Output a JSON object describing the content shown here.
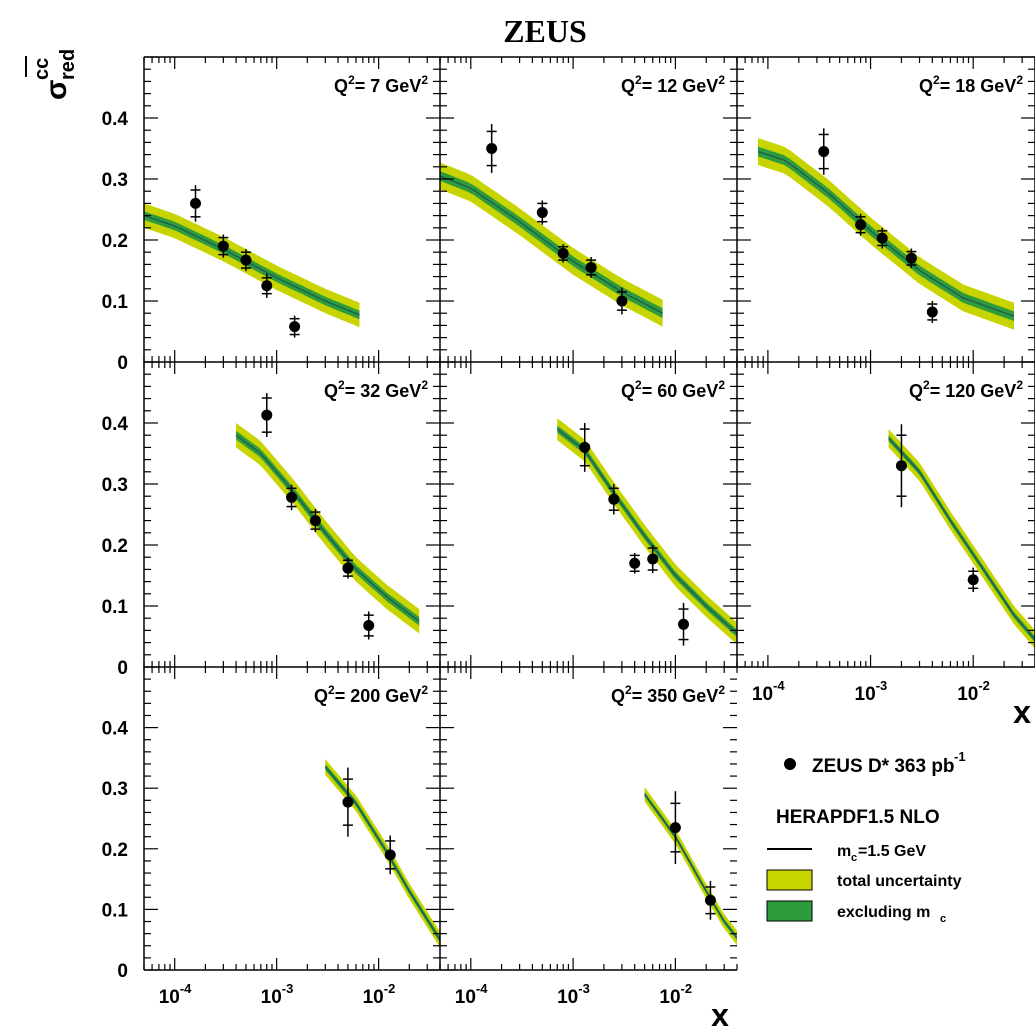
{
  "title": "ZEUS",
  "ylabel_main": "σ",
  "ylabel_sup": "cc",
  "ylabel_sub": "red",
  "xlabel": "x",
  "x_ticks": [
    {
      "base": "10",
      "exp": "-4",
      "x": 0.0001
    },
    {
      "base": "10",
      "exp": "-3",
      "x": 0.001
    },
    {
      "base": "10",
      "exp": "-2",
      "x": 0.01
    }
  ],
  "y_ticks": [
    "0",
    "0.1",
    "0.2",
    "0.3",
    "0.4"
  ],
  "legend": {
    "data": "ZEUS D* 363 pb",
    "data_sup": "-1",
    "theory_title": "HERAPDF1.5 NLO",
    "line_main": "m",
    "line_sub": "c",
    "line_rest": "=1.5 GeV",
    "total": "total uncertainty",
    "excl_main": "excluding m",
    "excl_sub": "c"
  },
  "colors": {
    "total_band": "#c8d400",
    "excl_band": "#2e9b3c",
    "central": "#1f5f4f",
    "points": "#000000"
  },
  "chart_data": {
    "type": "scatter",
    "x_scale": "log",
    "xlim": [
      5e-05,
      0.04
    ],
    "ylim": [
      0,
      0.5
    ],
    "panels": [
      {
        "label": "Q",
        "sup": "2",
        "value": "= 7",
        "unit": "GeV",
        "unit_sup": "2",
        "points": [
          {
            "x": 0.00016,
            "y": 0.26,
            "stat": 0.022,
            "tot": 0.03
          },
          {
            "x": 0.0003,
            "y": 0.19,
            "stat": 0.014,
            "tot": 0.019
          },
          {
            "x": 0.0005,
            "y": 0.167,
            "stat": 0.013,
            "tot": 0.018
          },
          {
            "x": 0.0008,
            "y": 0.125,
            "stat": 0.013,
            "tot": 0.02
          },
          {
            "x": 0.0015,
            "y": 0.058,
            "stat": 0.013,
            "tot": 0.018
          }
        ],
        "curve": [
          [
            5e-05,
            0.24
          ],
          [
            0.0001,
            0.223
          ],
          [
            0.0003,
            0.185
          ],
          [
            0.001,
            0.138
          ],
          [
            0.003,
            0.1
          ],
          [
            0.0065,
            0.077
          ]
        ],
        "total_band": 0.02,
        "excl_band": 0.007
      },
      {
        "label": "Q",
        "sup": "2",
        "value": "= 12",
        "unit": "GeV",
        "unit_sup": "2",
        "points": [
          {
            "x": 0.00016,
            "y": 0.35,
            "stat": 0.028,
            "tot": 0.04
          },
          {
            "x": 0.0005,
            "y": 0.245,
            "stat": 0.015,
            "tot": 0.02
          },
          {
            "x": 0.0008,
            "y": 0.178,
            "stat": 0.011,
            "tot": 0.015
          },
          {
            "x": 0.0015,
            "y": 0.155,
            "stat": 0.012,
            "tot": 0.017
          },
          {
            "x": 0.003,
            "y": 0.1,
            "stat": 0.015,
            "tot": 0.022
          }
        ],
        "curve": [
          [
            5e-05,
            0.305
          ],
          [
            0.0001,
            0.285
          ],
          [
            0.0003,
            0.23
          ],
          [
            0.001,
            0.165
          ],
          [
            0.003,
            0.115
          ],
          [
            0.0075,
            0.08
          ]
        ],
        "total_band": 0.022,
        "excl_band": 0.008
      },
      {
        "label": "Q",
        "sup": "2",
        "value": "= 18",
        "unit": "GeV",
        "unit_sup": "2",
        "points": [
          {
            "x": 0.00035,
            "y": 0.345,
            "stat": 0.028,
            "tot": 0.038
          },
          {
            "x": 0.0008,
            "y": 0.225,
            "stat": 0.013,
            "tot": 0.018
          },
          {
            "x": 0.0013,
            "y": 0.203,
            "stat": 0.012,
            "tot": 0.017
          },
          {
            "x": 0.0025,
            "y": 0.17,
            "stat": 0.011,
            "tot": 0.016
          },
          {
            "x": 0.004,
            "y": 0.082,
            "stat": 0.013,
            "tot": 0.018
          }
        ],
        "curve": [
          [
            8e-05,
            0.345
          ],
          [
            0.00015,
            0.33
          ],
          [
            0.0004,
            0.275
          ],
          [
            0.001,
            0.215
          ],
          [
            0.003,
            0.15
          ],
          [
            0.008,
            0.105
          ],
          [
            0.025,
            0.075
          ]
        ],
        "total_band": 0.022,
        "excl_band": 0.008
      },
      {
        "label": "Q",
        "sup": "2",
        "value": "= 32",
        "unit": "GeV",
        "unit_sup": "2",
        "points": [
          {
            "x": 0.0008,
            "y": 0.413,
            "stat": 0.028,
            "tot": 0.036
          },
          {
            "x": 0.0014,
            "y": 0.278,
            "stat": 0.015,
            "tot": 0.021
          },
          {
            "x": 0.0024,
            "y": 0.24,
            "stat": 0.014,
            "tot": 0.019
          },
          {
            "x": 0.005,
            "y": 0.162,
            "stat": 0.013,
            "tot": 0.017
          },
          {
            "x": 0.008,
            "y": 0.068,
            "stat": 0.017,
            "tot": 0.023
          }
        ],
        "curve": [
          [
            0.0004,
            0.38
          ],
          [
            0.0007,
            0.35
          ],
          [
            0.0015,
            0.285
          ],
          [
            0.003,
            0.22
          ],
          [
            0.006,
            0.16
          ],
          [
            0.012,
            0.115
          ],
          [
            0.025,
            0.075
          ]
        ],
        "total_band": 0.02,
        "excl_band": 0.007
      },
      {
        "label": "Q",
        "sup": "2",
        "value": "= 60",
        "unit": "GeV",
        "unit_sup": "2",
        "points": [
          {
            "x": 0.0013,
            "y": 0.36,
            "stat": 0.03,
            "tot": 0.04
          },
          {
            "x": 0.0025,
            "y": 0.275,
            "stat": 0.018,
            "tot": 0.025
          },
          {
            "x": 0.004,
            "y": 0.17,
            "stat": 0.013,
            "tot": 0.017
          },
          {
            "x": 0.006,
            "y": 0.177,
            "stat": 0.018,
            "tot": 0.023
          },
          {
            "x": 0.012,
            "y": 0.07,
            "stat": 0.025,
            "tot": 0.035
          }
        ],
        "curve": [
          [
            0.0007,
            0.39
          ],
          [
            0.0013,
            0.355
          ],
          [
            0.0025,
            0.285
          ],
          [
            0.005,
            0.215
          ],
          [
            0.01,
            0.15
          ],
          [
            0.02,
            0.1
          ],
          [
            0.04,
            0.055
          ]
        ],
        "total_band": 0.018,
        "excl_band": 0.006
      },
      {
        "label": "Q",
        "sup": "2",
        "value": "= 120",
        "unit": "GeV",
        "unit_sup": "2",
        "points": [
          {
            "x": 0.002,
            "y": 0.33,
            "stat": 0.05,
            "tot": 0.068
          },
          {
            "x": 0.01,
            "y": 0.143,
            "stat": 0.014,
            "tot": 0.02
          }
        ],
        "curve": [
          [
            0.0015,
            0.375
          ],
          [
            0.003,
            0.32
          ],
          [
            0.006,
            0.24
          ],
          [
            0.012,
            0.165
          ],
          [
            0.025,
            0.085
          ],
          [
            0.04,
            0.045
          ]
        ],
        "total_band": 0.015,
        "excl_band": 0.005
      },
      {
        "label": "Q",
        "sup": "2",
        "value": "= 200",
        "unit": "GeV",
        "unit_sup": "2",
        "points": [
          {
            "x": 0.005,
            "y": 0.277,
            "stat": 0.038,
            "tot": 0.057
          },
          {
            "x": 0.013,
            "y": 0.19,
            "stat": 0.023,
            "tot": 0.032
          }
        ],
        "curve": [
          [
            0.003,
            0.335
          ],
          [
            0.006,
            0.275
          ],
          [
            0.012,
            0.195
          ],
          [
            0.02,
            0.13
          ],
          [
            0.04,
            0.05
          ]
        ],
        "total_band": 0.013,
        "excl_band": 0.005
      },
      {
        "label": "Q",
        "sup": "2",
        "value": "= 350",
        "unit": "GeV",
        "unit_sup": "2",
        "points": [
          {
            "x": 0.01,
            "y": 0.235,
            "stat": 0.04,
            "tot": 0.06
          },
          {
            "x": 0.022,
            "y": 0.115,
            "stat": 0.022,
            "tot": 0.032
          }
        ],
        "curve": [
          [
            0.005,
            0.29
          ],
          [
            0.01,
            0.22
          ],
          [
            0.02,
            0.13
          ],
          [
            0.03,
            0.08
          ],
          [
            0.04,
            0.053
          ]
        ],
        "total_band": 0.012,
        "excl_band": 0.004
      }
    ]
  }
}
